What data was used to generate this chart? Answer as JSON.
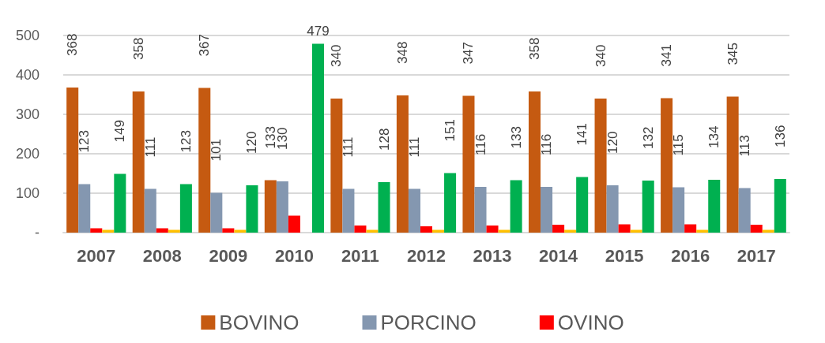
{
  "chart_data": {
    "type": "bar",
    "categories": [
      "2007",
      "2008",
      "2009",
      "2010",
      "2011",
      "2012",
      "2013",
      "2014",
      "2015",
      "2016",
      "2017"
    ],
    "series": [
      {
        "name": "BOVINO",
        "color": "#c55a11",
        "values": [
          368,
          358,
          367,
          133,
          340,
          348,
          347,
          358,
          340,
          341,
          345
        ],
        "value_labels": [
          "368",
          "358",
          "367",
          "133",
          "340",
          "348",
          "347",
          "358",
          "340",
          "341",
          "345"
        ]
      },
      {
        "name": "PORCINO",
        "color": "#8497b0",
        "values": [
          123,
          111,
          101,
          130,
          111,
          111,
          116,
          116,
          120,
          115,
          113
        ],
        "value_labels": [
          "123",
          "111",
          "101",
          "130",
          "111",
          "111",
          "116",
          "116",
          "120",
          "115",
          "113"
        ]
      },
      {
        "name": "OVINO",
        "color": "#ff0000",
        "values": [
          11,
          11,
          11,
          43,
          18,
          16,
          18,
          20,
          21,
          21,
          20
        ]
      },
      {
        "color": "#ffc000",
        "values": [
          7,
          7,
          7,
          null,
          7,
          7,
          7,
          7,
          7,
          7,
          7
        ]
      },
      {
        "color": "#00b050",
        "values": [
          149,
          123,
          120,
          479,
          128,
          151,
          133,
          141,
          132,
          134,
          136
        ],
        "value_labels": [
          "149",
          "123",
          "120",
          "479",
          "128",
          "151",
          "133",
          "141",
          "132",
          "134",
          "136"
        ]
      }
    ],
    "ylim": [
      0,
      500
    ],
    "yticks": [
      {
        "value": 0,
        "label": "-"
      },
      100,
      200,
      300,
      400,
      500
    ],
    "grid": "y",
    "legend": "bottom"
  }
}
